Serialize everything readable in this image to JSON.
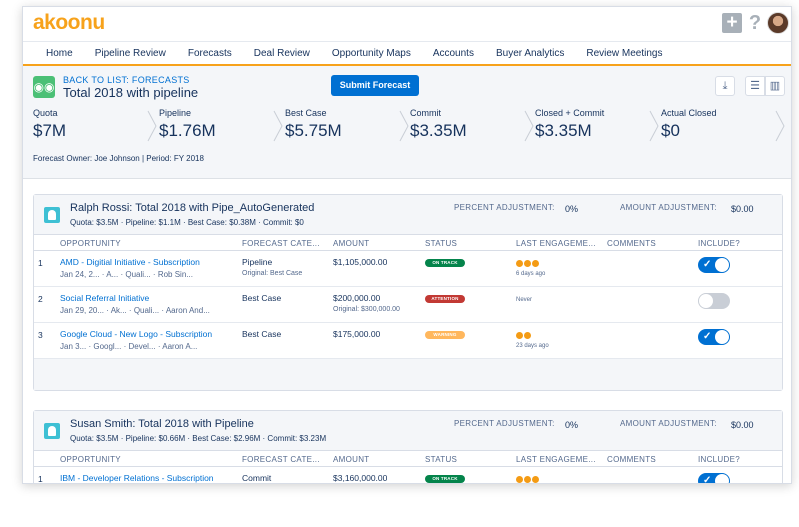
{
  "app": {
    "logo": "akoonu",
    "plus_icon": "plus-icon",
    "help_icon": "help-icon"
  },
  "nav": [
    "Home",
    "Pipeline Review",
    "Forecasts",
    "Deal Review",
    "Opportunity Maps",
    "Accounts",
    "Buyer Analytics",
    "Review Meetings"
  ],
  "header": {
    "back_link": "BACK TO LIST: FORECASTS",
    "title": "Total 2018 with pipeline",
    "submit_label": "Submit Forecast",
    "metrics": [
      {
        "label": "Quota",
        "value": "$7M"
      },
      {
        "label": "Pipeline",
        "value": "$1.76M"
      },
      {
        "label": "Best Case",
        "value": "$5.75M"
      },
      {
        "label": "Commit",
        "value": "$3.35M"
      },
      {
        "label": "Closed + Commit",
        "value": "$3.35M"
      },
      {
        "label": "Actual Closed",
        "value": "$0"
      }
    ],
    "owner_line": "Forecast Owner: Joe Johnson   |   Period: FY 2018"
  },
  "columns": [
    "OPPORTUNITY",
    "FORECAST CATE...",
    "AMOUNT",
    "STATUS",
    "LAST ENGAGEME...",
    "COMMENTS",
    "INCLUDE?"
  ],
  "adjust_labels": {
    "percent": "PERCENT ADJUSTMENT:",
    "amount": "AMOUNT ADJUSTMENT:"
  },
  "colors": {
    "accent": "#f7a21b",
    "link": "#0070d2",
    "on_track": "#04844b",
    "attention": "#c23934",
    "warning": "#ffb75d"
  },
  "cards": [
    {
      "title": "Ralph Rossi: Total 2018 with Pipe_AutoGenerated",
      "summary": "Quota: $3.5M  ·  Pipeline: $1.1M  ·  Best Case: $0.38M  ·  Commit: $0",
      "percent_adj": "0%",
      "amount_adj": "$0.00",
      "rows": [
        {
          "num": "1",
          "name": "AMD - Digitial Initiative - Subscription",
          "meta": "Jan 24, 2...   ·  A...   · Quali...   · Rob Sin...",
          "forecast": "Pipeline",
          "forecast_sub": "Original: Best Case",
          "amount": "$1,105,000.00",
          "amount_sub": "",
          "status": "ON TRACK",
          "status_color": "#04844b",
          "dots": 3,
          "engagement": "6 days ago",
          "include": true
        },
        {
          "num": "2",
          "name": "Social Referral Initiative",
          "meta": "Jan 29, 20...   ·  Ak...   · Quali...   · Aaron And...",
          "forecast": "Best Case",
          "forecast_sub": "",
          "amount": "$200,000.00",
          "amount_sub": "Original: $300,000.00",
          "status": "ATTENTION",
          "status_color": "#c23934",
          "dots": 0,
          "engagement": "Never",
          "include": false
        },
        {
          "num": "3",
          "name": "Google Cloud - New Logo - Subscription",
          "meta": "Jan 3...   ·  Googl...   · Devel...   · Aaron A...",
          "forecast": "Best Case",
          "forecast_sub": "",
          "amount": "$175,000.00",
          "amount_sub": "",
          "status": "WARNING",
          "status_color": "#ffb75d",
          "dots": 2,
          "engagement": "23 days ago",
          "include": true
        }
      ]
    },
    {
      "title": "Susan Smith: Total 2018 with Pipeline",
      "summary": "Quota: $3.5M  ·  Pipeline: $0.66M  ·  Best Case: $2.96M  ·  Commit: $3.23M",
      "percent_adj": "0%",
      "amount_adj": "$0.00",
      "rows": [
        {
          "num": "1",
          "name": "IBM - Developer Relations - Subscription",
          "meta": "",
          "forecast": "Commit",
          "forecast_sub": "",
          "amount": "$3,160,000.00",
          "amount_sub": "",
          "status": "ON TRACK",
          "status_color": "#04844b",
          "dots": 3,
          "engagement": "",
          "include": true
        }
      ]
    }
  ]
}
